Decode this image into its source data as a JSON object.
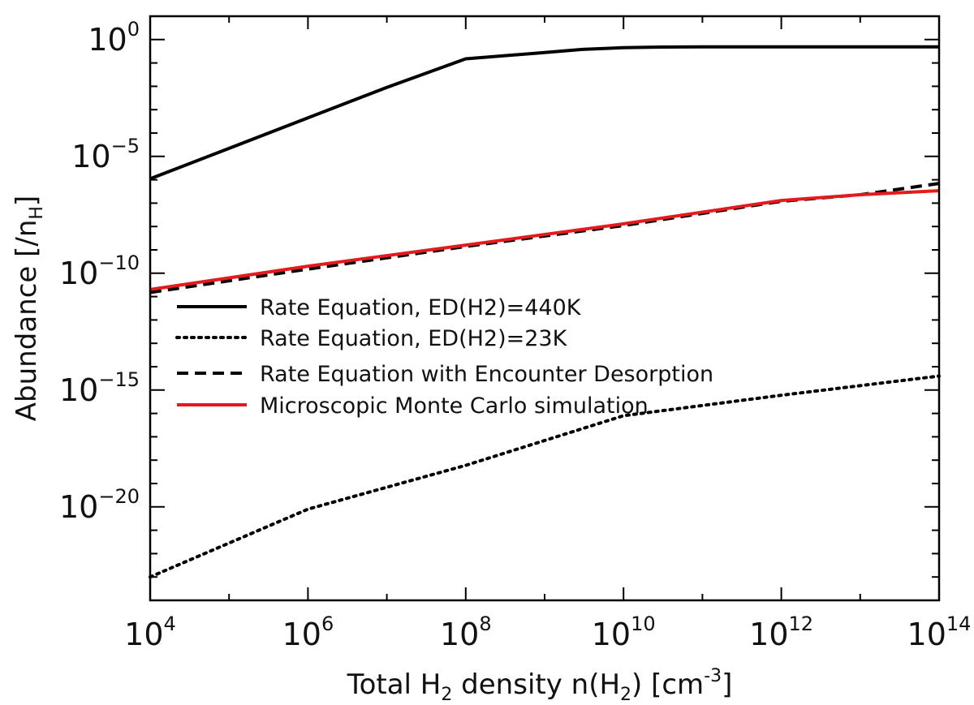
{
  "chart_data": {
    "type": "line",
    "xlabel": {
      "pre": "Total H",
      "sub": "2",
      "mid": " density n(H",
      "sub2": "2",
      "post": ") [cm",
      "sup": "-3",
      "end": "]"
    },
    "ylabel": {
      "pre": "Abundance [/n",
      "sub": "H",
      "post": "]"
    },
    "x_scale": "log",
    "y_scale": "log",
    "xlim": [
      10000,
      100000000000000
    ],
    "ylim": [
      1e-24,
      10.0
    ],
    "grid": false,
    "legend_position": "center-left",
    "x_ticks": [
      {
        "value": 10000,
        "base": "10",
        "exp": "4"
      },
      {
        "value": 1000000,
        "base": "10",
        "exp": "6"
      },
      {
        "value": 100000000,
        "base": "10",
        "exp": "8"
      },
      {
        "value": 10000000000,
        "base": "10",
        "exp": "10"
      },
      {
        "value": 1000000000000,
        "base": "10",
        "exp": "12"
      },
      {
        "value": 100000000000000,
        "base": "10",
        "exp": "14"
      }
    ],
    "y_ticks": [
      {
        "value": 1,
        "base": "10",
        "exp": "0"
      },
      {
        "value": 1e-05,
        "base": "10",
        "exp": "−5"
      },
      {
        "value": 1e-10,
        "base": "10",
        "exp": "−10"
      },
      {
        "value": 1e-15,
        "base": "10",
        "exp": "−15"
      },
      {
        "value": 1e-20,
        "base": "10",
        "exp": "−20"
      }
    ],
    "series": [
      {
        "name": "Rate Equation, ED(H2)=440K",
        "color": "#000000",
        "style": "solid",
        "x": [
          10000.0,
          100000.0,
          1000000.0,
          10000000.0,
          100000000.0,
          1000000000.0,
          3000000000.0,
          10000000000.0,
          30000000000.0,
          100000000000.0,
          1000000000000.0,
          10000000000000.0,
          100000000000000.0
        ],
        "y": [
          1.1e-06,
          2.2e-05,
          0.00045,
          0.009,
          0.15,
          0.28,
          0.38,
          0.45,
          0.48,
          0.49,
          0.49,
          0.49,
          0.49
        ]
      },
      {
        "name": "Rate Equation, ED(H2)=23K",
        "color": "#000000",
        "style": "dotted",
        "x": [
          10000.0,
          1000000.0,
          100000000.0,
          10000000000.0,
          1000000000000.0,
          100000000000000.0
        ],
        "y": [
          1e-23,
          8e-21,
          6e-19,
          8e-17,
          6e-16,
          4e-15
        ]
      },
      {
        "name": "Rate Equation with Encounter Desorption",
        "color": "#000000",
        "style": "dashed",
        "x": [
          10000.0,
          1000000.0,
          100000000.0,
          10000000000.0,
          1000000000000.0,
          10000000000000.0,
          100000000000000.0
        ],
        "y": [
          1.5e-11,
          1.5e-10,
          1.4e-09,
          1.1e-08,
          1.2e-07,
          2.3e-07,
          7e-07
        ]
      },
      {
        "name": "Microscopic Monte Carlo simulation",
        "color": "#e41a1c",
        "style": "solid",
        "x": [
          10000.0,
          1000000.0,
          100000000.0,
          10000000000.0,
          1000000000000.0,
          10000000000000.0,
          100000000000000.0
        ],
        "y": [
          2e-11,
          2e-10,
          1.6e-09,
          1.3e-08,
          1.3e-07,
          2.3e-07,
          3.4e-07
        ]
      }
    ]
  }
}
